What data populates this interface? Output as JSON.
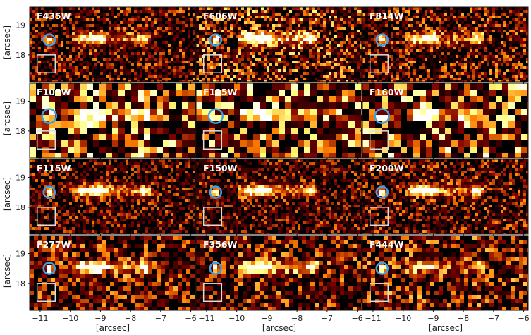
{
  "figure": {
    "panels": [
      {
        "filter": "F435W",
        "pixel_scale": "fine",
        "brightness": 0.55,
        "source_strength": 0.7
      },
      {
        "filter": "F606W",
        "pixel_scale": "fine",
        "brightness": 0.75,
        "source_strength": 1.0
      },
      {
        "filter": "F814W",
        "pixel_scale": "fine",
        "brightness": 0.6,
        "source_strength": 0.7
      },
      {
        "filter": "F105W",
        "pixel_scale": "coarse",
        "brightness": 0.95,
        "source_strength": 1.0
      },
      {
        "filter": "F125W",
        "pixel_scale": "coarse",
        "brightness": 0.95,
        "source_strength": 1.0
      },
      {
        "filter": "F160W",
        "pixel_scale": "coarse",
        "brightness": 0.95,
        "source_strength": 1.0
      },
      {
        "filter": "F115W",
        "pixel_scale": "fine",
        "brightness": 0.5,
        "source_strength": 0.9
      },
      {
        "filter": "F150W",
        "pixel_scale": "fine",
        "brightness": 0.5,
        "source_strength": 0.9
      },
      {
        "filter": "F200W",
        "pixel_scale": "fine",
        "brightness": 0.55,
        "source_strength": 0.9
      },
      {
        "filter": "F277W",
        "pixel_scale": "medium",
        "brightness": 0.6,
        "source_strength": 1.0
      },
      {
        "filter": "F356W",
        "pixel_scale": "medium",
        "brightness": 0.6,
        "source_strength": 1.0
      },
      {
        "filter": "F444W",
        "pixel_scale": "medium",
        "brightness": 0.65,
        "source_strength": 0.6
      }
    ],
    "x_axis": {
      "label": "[arcsec]",
      "ticks": [
        "−11",
        "−10",
        "−9",
        "−8",
        "−7",
        "−6"
      ],
      "tick_values": [
        -11,
        -10,
        -9,
        -8,
        -7,
        -6
      ],
      "range": [
        -11.35,
        -5.85
      ]
    },
    "y_axis": {
      "label": "[arcsec]",
      "ticks": [
        "19",
        "18"
      ],
      "tick_values": [
        19,
        18
      ],
      "range": [
        17.1,
        19.6
      ]
    },
    "markers": {
      "circle_color": "#3ea0e6",
      "box_color": "#dddddd",
      "circle_center": [
        -10.7,
        18.5
      ],
      "box_center": [
        -10.8,
        17.7
      ],
      "box_size": 0.6
    },
    "colormap": "afmhot",
    "galaxy_arc": {
      "x_range": [
        -9.9,
        -7.3
      ],
      "y_center": 18.55,
      "bright_knots_x": [
        -9.6,
        -9.3,
        -9.15,
        -8.95,
        -7.55
      ]
    }
  }
}
